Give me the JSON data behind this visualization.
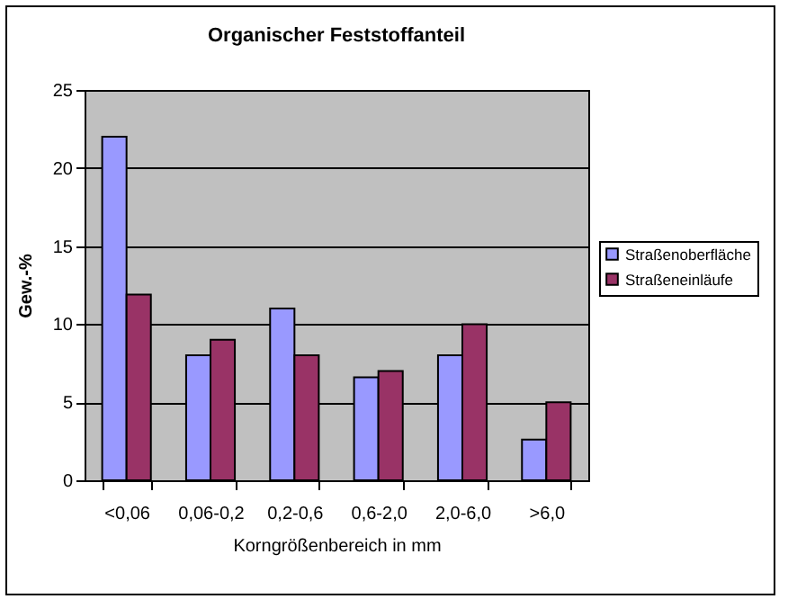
{
  "chart_data": {
    "type": "bar",
    "title": "Organischer Feststoffanteil",
    "xlabel": "Korngrößenbereich in mm",
    "ylabel": "Gew.-%",
    "categories": [
      "<0,06",
      "0,06-0,2",
      "0,2-0,6",
      "0,6-2,0",
      "2,0-6,0",
      ">6,0"
    ],
    "series": [
      {
        "name": "Straßenoberfläche",
        "color": "#9999ff",
        "values": [
          22,
          8,
          11,
          6.6,
          8,
          2.6
        ]
      },
      {
        "name": "Straßeneinläufe",
        "color": "#993366",
        "values": [
          11.9,
          9,
          8,
          7,
          10,
          5
        ]
      }
    ],
    "ylim": [
      0,
      25
    ],
    "yticks": [
      0,
      5,
      10,
      15,
      20,
      25
    ],
    "grid": "y",
    "legend": "right"
  }
}
